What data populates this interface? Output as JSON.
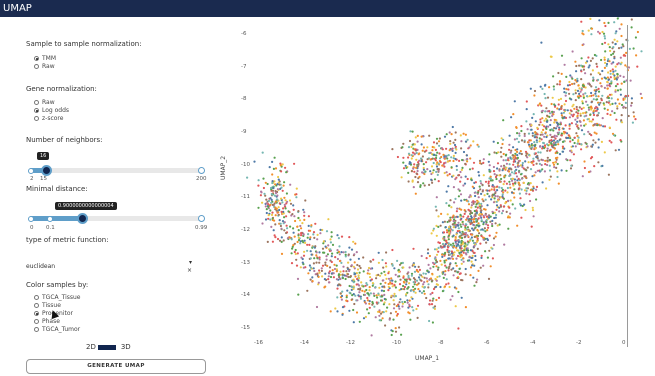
{
  "window": {
    "title": "UMAP"
  },
  "sample_normalization": {
    "label": "Sample to sample normalization:",
    "options": [
      {
        "label": "TMM",
        "selected": true
      },
      {
        "label": "Raw",
        "selected": false
      }
    ]
  },
  "gene_normalization": {
    "label": "Gene normalization:",
    "options": [
      {
        "label": "Raw",
        "selected": false
      },
      {
        "label": "Log odds",
        "selected": true
      },
      {
        "label": "z-score",
        "selected": false
      }
    ]
  },
  "neighbors": {
    "label": "Number of neighbors:",
    "value": 16,
    "value_text": "16",
    "min": 2,
    "max": 200,
    "ticks": [
      "2",
      "15",
      "200"
    ]
  },
  "min_distance": {
    "label": "Minimal distance:",
    "value": 0.9,
    "value_text": "0.9000000000000004",
    "min": 0,
    "max": 0.99,
    "ticks": [
      "0",
      "0.1",
      "0.99"
    ]
  },
  "metric": {
    "label": "type of metric function:",
    "selected": "euclidean",
    "arrow": "▾",
    "clear": "×"
  },
  "color_by": {
    "label": "Color samples by:",
    "options": [
      {
        "label": "TGCA_Tissue",
        "selected": false
      },
      {
        "label": "Tissue",
        "selected": false
      },
      {
        "label": "Progenitor",
        "selected": true
      },
      {
        "label": "Phase",
        "selected": false
      },
      {
        "label": "TGCA_Tumor",
        "selected": false
      }
    ]
  },
  "dimension_toggle": {
    "left": "2D",
    "right": "3D"
  },
  "generate_button": {
    "label": "GENERATE UMAP"
  },
  "plot": {
    "xlabel": "UMAP_1",
    "ylabel": "UMAP_2",
    "xticks": [
      "-16",
      "-14",
      "-12",
      "-10",
      "-8",
      "-6",
      "-4",
      "-2",
      "0"
    ],
    "yticks": [
      "-6",
      "-7",
      "-8",
      "-9",
      "-10",
      "-11",
      "-12",
      "-13",
      "-14",
      "-15"
    ],
    "xlim": [
      -16,
      0.3
    ],
    "ylim": [
      -15.1,
      -5.9
    ],
    "colors": [
      "#4e79a7",
      "#f28e2b",
      "#59a14f",
      "#e15759",
      "#76b7b2",
      "#b07aa1",
      "#edc948",
      "#9c755f"
    ]
  }
}
